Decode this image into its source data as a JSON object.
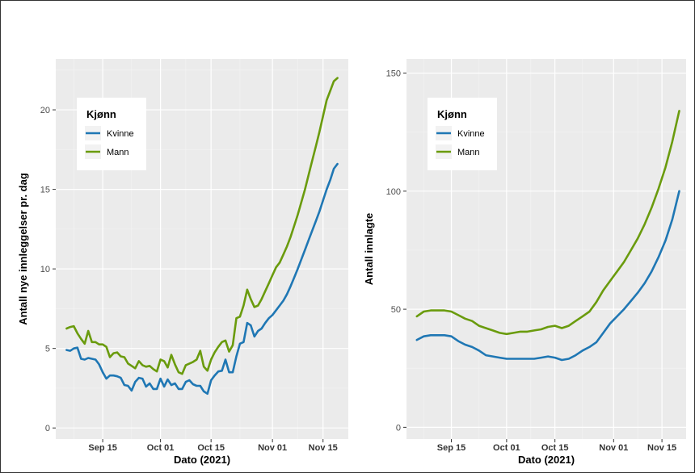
{
  "colors": {
    "panel_bg": "#ebebeb",
    "grid_major": "#ffffff",
    "grid_minor": "#f4f4f4",
    "Kvinne": "#1f77b4",
    "Mann": "#6a9b0d"
  },
  "chart_data": [
    {
      "type": "line",
      "title": "",
      "xlabel": "Dato (2021)",
      "ylabel": "Antall nye innleggelser pr. dag",
      "x_ticks": [
        "Sep 15",
        "Oct 01",
        "Oct 15",
        "Nov 01",
        "Nov 15"
      ],
      "y_ticks": [
        "0",
        "5",
        "10",
        "15",
        "20"
      ],
      "ylim": [
        -0.7,
        23.2
      ],
      "xlim": [
        "2021-09-02",
        "2021-11-22"
      ],
      "legend": {
        "title": "Kjønn",
        "position": "top-left",
        "entries": [
          "Kvinne",
          "Mann"
        ]
      },
      "series": [
        {
          "name": "Kvinne",
          "x": [
            "2021-09-05",
            "2021-09-06",
            "2021-09-07",
            "2021-09-08",
            "2021-09-09",
            "2021-09-10",
            "2021-09-11",
            "2021-09-12",
            "2021-09-13",
            "2021-09-14",
            "2021-09-15",
            "2021-09-16",
            "2021-09-17",
            "2021-09-18",
            "2021-09-19",
            "2021-09-20",
            "2021-09-21",
            "2021-09-22",
            "2021-09-23",
            "2021-09-24",
            "2021-09-25",
            "2021-09-26",
            "2021-09-27",
            "2021-09-28",
            "2021-09-29",
            "2021-09-30",
            "2021-10-01",
            "2021-10-02",
            "2021-10-03",
            "2021-10-04",
            "2021-10-05",
            "2021-10-06",
            "2021-10-07",
            "2021-10-08",
            "2021-10-09",
            "2021-10-10",
            "2021-10-11",
            "2021-10-12",
            "2021-10-13",
            "2021-10-14",
            "2021-10-15",
            "2021-10-16",
            "2021-10-17",
            "2021-10-18",
            "2021-10-19",
            "2021-10-20",
            "2021-10-21",
            "2021-10-22",
            "2021-10-23",
            "2021-10-24",
            "2021-10-25",
            "2021-10-26",
            "2021-10-27",
            "2021-10-28",
            "2021-10-29",
            "2021-10-30",
            "2021-10-31",
            "2021-11-01",
            "2021-11-02",
            "2021-11-03",
            "2021-11-04",
            "2021-11-05",
            "2021-11-06",
            "2021-11-07",
            "2021-11-08",
            "2021-11-09",
            "2021-11-10",
            "2021-11-11",
            "2021-11-12",
            "2021-11-13",
            "2021-11-14",
            "2021-11-15",
            "2021-11-16",
            "2021-11-17",
            "2021-11-18",
            "2021-11-19"
          ],
          "values": [
            4.9,
            4.85,
            5.0,
            5.05,
            4.35,
            4.3,
            4.4,
            4.35,
            4.3,
            4.0,
            3.5,
            3.1,
            3.3,
            3.3,
            3.25,
            3.15,
            2.7,
            2.65,
            2.35,
            2.9,
            3.15,
            3.1,
            2.6,
            2.8,
            2.45,
            2.45,
            3.1,
            2.6,
            3.05,
            2.7,
            2.8,
            2.45,
            2.45,
            2.9,
            3.0,
            2.75,
            2.65,
            2.65,
            2.3,
            2.15,
            3.0,
            3.3,
            3.55,
            3.6,
            4.3,
            3.5,
            3.5,
            4.5,
            5.3,
            5.4,
            6.6,
            6.45,
            5.75,
            6.1,
            6.25,
            6.6,
            6.9,
            7.1,
            7.4,
            7.7,
            8.0,
            8.4,
            8.9,
            9.45,
            10.0,
            10.6,
            11.2,
            11.8,
            12.4,
            13.0,
            13.6,
            14.3,
            15.0,
            15.6,
            16.3,
            16.6
          ]
        },
        {
          "name": "Mann",
          "x": [
            "2021-09-05",
            "2021-09-06",
            "2021-09-07",
            "2021-09-08",
            "2021-09-09",
            "2021-09-10",
            "2021-09-11",
            "2021-09-12",
            "2021-09-13",
            "2021-09-14",
            "2021-09-15",
            "2021-09-16",
            "2021-09-17",
            "2021-09-18",
            "2021-09-19",
            "2021-09-20",
            "2021-09-21",
            "2021-09-22",
            "2021-09-23",
            "2021-09-24",
            "2021-09-25",
            "2021-09-26",
            "2021-09-27",
            "2021-09-28",
            "2021-09-29",
            "2021-09-30",
            "2021-10-01",
            "2021-10-02",
            "2021-10-03",
            "2021-10-04",
            "2021-10-05",
            "2021-10-06",
            "2021-10-07",
            "2021-10-08",
            "2021-10-09",
            "2021-10-10",
            "2021-10-11",
            "2021-10-12",
            "2021-10-13",
            "2021-10-14",
            "2021-10-15",
            "2021-10-16",
            "2021-10-17",
            "2021-10-18",
            "2021-10-19",
            "2021-10-20",
            "2021-10-21",
            "2021-10-22",
            "2021-10-23",
            "2021-10-24",
            "2021-10-25",
            "2021-10-26",
            "2021-10-27",
            "2021-10-28",
            "2021-10-29",
            "2021-10-30",
            "2021-10-31",
            "2021-11-01",
            "2021-11-02",
            "2021-11-03",
            "2021-11-04",
            "2021-11-05",
            "2021-11-06",
            "2021-11-07",
            "2021-11-08",
            "2021-11-09",
            "2021-11-10",
            "2021-11-11",
            "2021-11-12",
            "2021-11-13",
            "2021-11-14",
            "2021-11-15",
            "2021-11-16",
            "2021-11-17",
            "2021-11-18",
            "2021-11-19"
          ],
          "values": [
            6.25,
            6.35,
            6.4,
            5.95,
            5.6,
            5.3,
            6.1,
            5.4,
            5.4,
            5.25,
            5.25,
            5.1,
            4.45,
            4.7,
            4.75,
            4.5,
            4.45,
            4.05,
            3.9,
            3.75,
            4.2,
            3.95,
            3.85,
            3.9,
            3.7,
            3.55,
            4.3,
            4.2,
            3.8,
            4.6,
            4.0,
            3.5,
            3.4,
            3.95,
            4.05,
            4.15,
            4.3,
            4.85,
            3.85,
            3.6,
            4.3,
            4.75,
            5.1,
            5.4,
            5.5,
            4.8,
            5.2,
            6.9,
            7.0,
            7.7,
            8.7,
            8.1,
            7.6,
            7.7,
            8.1,
            8.6,
            9.1,
            9.6,
            10.1,
            10.4,
            10.9,
            11.4,
            12.0,
            12.7,
            13.4,
            14.2,
            15.0,
            15.9,
            16.8,
            17.7,
            18.6,
            19.6,
            20.6,
            21.2,
            21.8,
            22.0
          ]
        }
      ]
    },
    {
      "type": "line",
      "title": "",
      "xlabel": "Dato (2021)",
      "ylabel": "Antall innlagte",
      "x_ticks": [
        "Sep 15",
        "Oct 01",
        "Oct 15",
        "Nov 01",
        "Nov 15"
      ],
      "y_ticks": [
        "0",
        "50",
        "100",
        "150"
      ],
      "ylim": [
        -5,
        156
      ],
      "xlim": [
        "2021-09-02",
        "2021-11-22"
      ],
      "legend": {
        "title": "Kjønn",
        "position": "top-left",
        "entries": [
          "Kvinne",
          "Mann"
        ]
      },
      "series": [
        {
          "name": "Kvinne",
          "x": [
            "2021-09-05",
            "2021-09-07",
            "2021-09-09",
            "2021-09-11",
            "2021-09-13",
            "2021-09-15",
            "2021-09-17",
            "2021-09-19",
            "2021-09-21",
            "2021-09-23",
            "2021-09-25",
            "2021-09-27",
            "2021-09-29",
            "2021-10-01",
            "2021-10-03",
            "2021-10-05",
            "2021-10-07",
            "2021-10-09",
            "2021-10-11",
            "2021-10-13",
            "2021-10-15",
            "2021-10-17",
            "2021-10-19",
            "2021-10-21",
            "2021-10-23",
            "2021-10-25",
            "2021-10-27",
            "2021-10-29",
            "2021-10-31",
            "2021-11-02",
            "2021-11-04",
            "2021-11-06",
            "2021-11-08",
            "2021-11-10",
            "2021-11-12",
            "2021-11-14",
            "2021-11-16",
            "2021-11-18",
            "2021-11-20"
          ],
          "values": [
            37,
            38.5,
            39,
            39,
            39,
            38.5,
            36.5,
            35,
            34,
            32.5,
            30.5,
            30,
            29.5,
            29,
            29,
            29,
            29,
            29,
            29.5,
            30,
            29.5,
            28.5,
            29,
            30.5,
            32.5,
            34,
            36,
            40,
            44,
            47,
            50,
            53.5,
            57,
            61,
            66,
            72,
            79,
            88,
            100
          ]
        },
        {
          "name": "Mann",
          "x": [
            "2021-09-05",
            "2021-09-07",
            "2021-09-09",
            "2021-09-11",
            "2021-09-13",
            "2021-09-15",
            "2021-09-17",
            "2021-09-19",
            "2021-09-21",
            "2021-09-23",
            "2021-09-25",
            "2021-09-27",
            "2021-09-29",
            "2021-10-01",
            "2021-10-03",
            "2021-10-05",
            "2021-10-07",
            "2021-10-09",
            "2021-10-11",
            "2021-10-13",
            "2021-10-15",
            "2021-10-17",
            "2021-10-19",
            "2021-10-21",
            "2021-10-23",
            "2021-10-25",
            "2021-10-27",
            "2021-10-29",
            "2021-10-31",
            "2021-11-02",
            "2021-11-04",
            "2021-11-06",
            "2021-11-08",
            "2021-11-10",
            "2021-11-12",
            "2021-11-14",
            "2021-11-16",
            "2021-11-18",
            "2021-11-20"
          ],
          "values": [
            47,
            49,
            49.5,
            49.5,
            49.5,
            49,
            47.5,
            46,
            45,
            43,
            42,
            41,
            40,
            39.5,
            40,
            40.5,
            40.5,
            41,
            41.5,
            42.5,
            43,
            42,
            43,
            45,
            47,
            49,
            53,
            58,
            62,
            66,
            70,
            75,
            80,
            86,
            93,
            101,
            110,
            121,
            134
          ]
        }
      ]
    }
  ]
}
